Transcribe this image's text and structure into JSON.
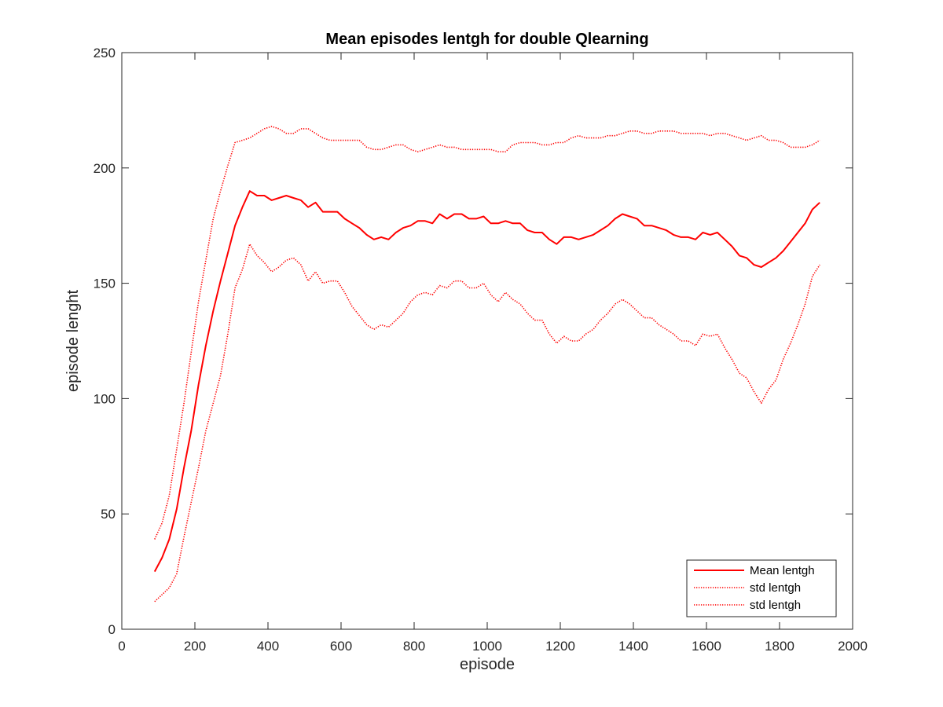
{
  "chart_data": {
    "type": "line",
    "title": "Mean episodes lentgh for double Qlearning",
    "xlabel": "episode",
    "ylabel": "episode lenght",
    "xlim": [
      0,
      2000
    ],
    "ylim": [
      0,
      250
    ],
    "xticks": [
      0,
      200,
      400,
      600,
      800,
      1000,
      1200,
      1400,
      1600,
      1800,
      2000
    ],
    "yticks": [
      0,
      50,
      100,
      150,
      200,
      250
    ],
    "grid": false,
    "legend_position": "bottom-right",
    "color": "#ff0000",
    "x": [
      90,
      110,
      130,
      150,
      170,
      190,
      210,
      230,
      250,
      270,
      290,
      310,
      330,
      350,
      370,
      390,
      410,
      430,
      450,
      470,
      490,
      510,
      530,
      550,
      570,
      590,
      610,
      630,
      650,
      670,
      690,
      710,
      730,
      750,
      770,
      790,
      810,
      830,
      850,
      870,
      890,
      910,
      930,
      950,
      970,
      990,
      1010,
      1030,
      1050,
      1070,
      1090,
      1110,
      1130,
      1150,
      1170,
      1190,
      1210,
      1230,
      1250,
      1270,
      1290,
      1310,
      1330,
      1350,
      1370,
      1390,
      1410,
      1430,
      1450,
      1470,
      1490,
      1510,
      1530,
      1550,
      1570,
      1590,
      1610,
      1630,
      1650,
      1670,
      1690,
      1710,
      1730,
      1750,
      1770,
      1790,
      1810,
      1830,
      1850,
      1870,
      1890,
      1910
    ],
    "series": [
      {
        "name": "Mean lentgh",
        "style": "solid",
        "values": [
          25,
          31,
          39,
          52,
          70,
          86,
          106,
          123,
          138,
          151,
          163,
          175,
          183,
          190,
          188,
          188,
          186,
          187,
          188,
          187,
          186,
          183,
          185,
          181,
          181,
          181,
          178,
          176,
          174,
          171,
          169,
          170,
          169,
          172,
          174,
          175,
          177,
          177,
          176,
          180,
          178,
          180,
          180,
          178,
          178,
          179,
          176,
          176,
          177,
          176,
          176,
          173,
          172,
          172,
          169,
          167,
          170,
          170,
          169,
          170,
          171,
          173,
          175,
          178,
          180,
          179,
          178,
          175,
          175,
          174,
          173,
          171,
          170,
          170,
          169,
          172,
          171,
          172,
          169,
          166,
          162,
          161,
          158,
          157,
          159,
          161,
          164,
          168,
          172,
          176,
          182,
          185
        ]
      },
      {
        "name": "std lentgh",
        "style": "dotted",
        "values": [
          39,
          46,
          58,
          78,
          98,
          120,
          142,
          160,
          178,
          190,
          201,
          211,
          212,
          213,
          215,
          217,
          218,
          217,
          215,
          215,
          217,
          217,
          215,
          213,
          212,
          212,
          212,
          212,
          212,
          209,
          208,
          208,
          209,
          210,
          210,
          208,
          207,
          208,
          209,
          210,
          209,
          209,
          208,
          208,
          208,
          208,
          208,
          207,
          207,
          210,
          211,
          211,
          211,
          210,
          210,
          211,
          211,
          213,
          214,
          213,
          213,
          213,
          214,
          214,
          215,
          216,
          216,
          215,
          215,
          216,
          216,
          216,
          215,
          215,
          215,
          215,
          214,
          215,
          215,
          214,
          213,
          212,
          213,
          214,
          212,
          212,
          211,
          209,
          209,
          209,
          210,
          212
        ]
      },
      {
        "name": "std lentgh",
        "style": "dotted",
        "values": [
          12,
          15,
          18,
          24,
          40,
          55,
          70,
          86,
          98,
          110,
          128,
          148,
          156,
          167,
          162,
          159,
          155,
          157,
          160,
          161,
          158,
          151,
          155,
          150,
          151,
          151,
          146,
          140,
          136,
          132,
          130,
          132,
          131,
          134,
          137,
          142,
          145,
          146,
          145,
          149,
          148,
          151,
          151,
          148,
          148,
          150,
          145,
          142,
          146,
          143,
          141,
          137,
          134,
          134,
          128,
          124,
          127,
          125,
          125,
          128,
          130,
          134,
          137,
          141,
          143,
          141,
          138,
          135,
          135,
          132,
          130,
          128,
          125,
          125,
          123,
          128,
          127,
          128,
          122,
          117,
          111,
          109,
          103,
          98,
          104,
          108,
          117,
          124,
          132,
          141,
          153,
          158
        ]
      }
    ]
  }
}
